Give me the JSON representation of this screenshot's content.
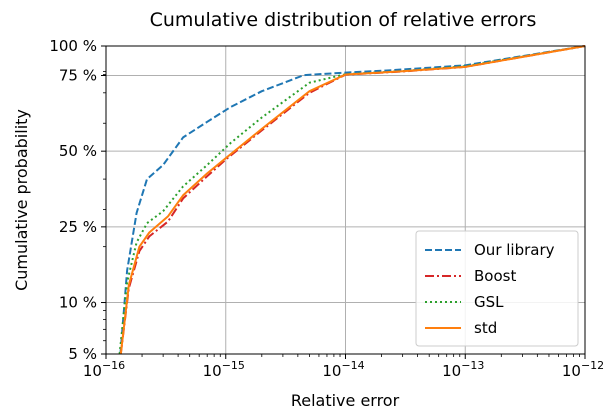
{
  "chart_data": {
    "type": "line",
    "title": "Cumulative distribution of relative errors",
    "xlabel": "Relative error",
    "ylabel": "Cumulative probability",
    "x_scale": "log",
    "xlim": [
      1e-16,
      1e-12
    ],
    "y_scale": "logit",
    "ylim": [
      0.05,
      1.0
    ],
    "x_ticks": [
      {
        "value": 1e-16,
        "label": "10",
        "exp": "−16"
      },
      {
        "value": 1e-15,
        "label": "10",
        "exp": "−15"
      },
      {
        "value": 1e-14,
        "label": "10",
        "exp": "−14"
      },
      {
        "value": 1e-13,
        "label": "10",
        "exp": "−13"
      },
      {
        "value": 1e-12,
        "label": "10",
        "exp": "−12"
      }
    ],
    "y_ticks": [
      {
        "value": 0.05,
        "label": "5 %"
      },
      {
        "value": 0.1,
        "label": "10 %"
      },
      {
        "value": 0.25,
        "label": "25 %"
      },
      {
        "value": 0.5,
        "label": "50 %"
      },
      {
        "value": 0.75,
        "label": "75 %"
      },
      {
        "value": 1.0,
        "label": "100 %"
      }
    ],
    "grid": true,
    "legend_position": "lower right",
    "series": [
      {
        "name": "Our library",
        "color": "#1f77b4",
        "dash": "dashed",
        "x": [
          1.32e-16,
          1.5e-16,
          1.8e-16,
          2.2e-16,
          3e-16,
          4.4e-16,
          7e-16,
          1.1e-15,
          2e-15,
          4.5e-15,
          1e-14,
          2.5e-14,
          1e-13,
          1e-12
        ],
        "y": [
          0.05,
          0.15,
          0.29,
          0.4,
          0.45,
          0.55,
          0.605,
          0.655,
          0.705,
          0.77,
          0.87,
          0.93,
          0.98,
          1.0
        ]
      },
      {
        "name": "Boost",
        "color": "#d62728",
        "dash": "dashdot",
        "x": [
          1.33e-16,
          1.55e-16,
          1.9e-16,
          2.3e-16,
          3.3e-16,
          4.4e-16,
          7e-16,
          1e-15,
          2e-15,
          5e-15,
          1e-14,
          3e-14,
          1e-13,
          1e-12
        ],
        "y": [
          0.05,
          0.12,
          0.19,
          0.225,
          0.265,
          0.335,
          0.41,
          0.47,
          0.575,
          0.7,
          0.79,
          0.9,
          0.97,
          1.0
        ]
      },
      {
        "name": "GSL",
        "color": "#2ca02c",
        "dash": "dotted",
        "x": [
          1.3e-16,
          1.5e-16,
          1.8e-16,
          2.2e-16,
          3e-16,
          4.4e-16,
          7e-16,
          1.1e-15,
          2e-15,
          5e-15,
          1e-14,
          3e-14,
          1e-13,
          1e-12
        ],
        "y": [
          0.05,
          0.13,
          0.21,
          0.26,
          0.295,
          0.375,
          0.45,
          0.53,
          0.62,
          0.73,
          0.81,
          0.91,
          0.975,
          1.0
        ]
      },
      {
        "name": "std",
        "color": "#ff7f0e",
        "dash": "solid",
        "x": [
          1.33e-16,
          1.55e-16,
          1.9e-16,
          2.3e-16,
          3.3e-16,
          4.4e-16,
          7e-16,
          1e-15,
          2e-15,
          5e-15,
          1e-14,
          3e-14,
          1e-13,
          1e-12
        ],
        "y": [
          0.05,
          0.125,
          0.2,
          0.235,
          0.28,
          0.345,
          0.42,
          0.475,
          0.58,
          0.705,
          0.8,
          0.905,
          0.97,
          1.0
        ]
      }
    ]
  }
}
